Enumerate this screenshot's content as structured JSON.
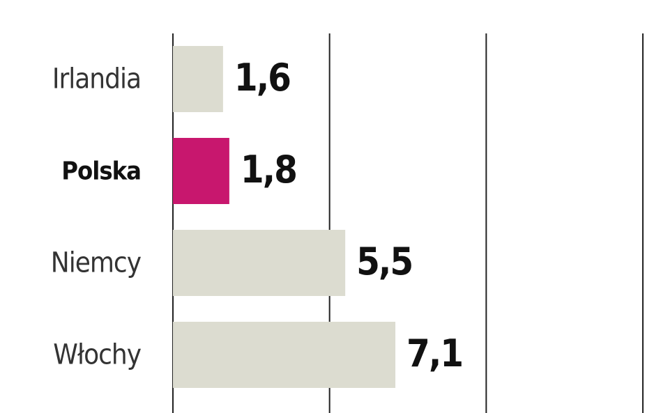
{
  "chart_data": {
    "type": "hbar",
    "categories": [
      "Irlandia",
      "Polska",
      "Niemcy",
      "Włochy"
    ],
    "values": [
      1.6,
      1.8,
      5.5,
      7.1
    ],
    "value_labels": [
      "1,6",
      "1,8",
      "5,5",
      "7,1"
    ],
    "colors": [
      "#dcdcd0",
      "#c8176e",
      "#dcdcd0",
      "#dcdcd0"
    ],
    "highlight_index": 1,
    "xlim": [
      0,
      15
    ],
    "xticks": [
      0,
      5,
      10,
      15
    ],
    "grid": true
  }
}
